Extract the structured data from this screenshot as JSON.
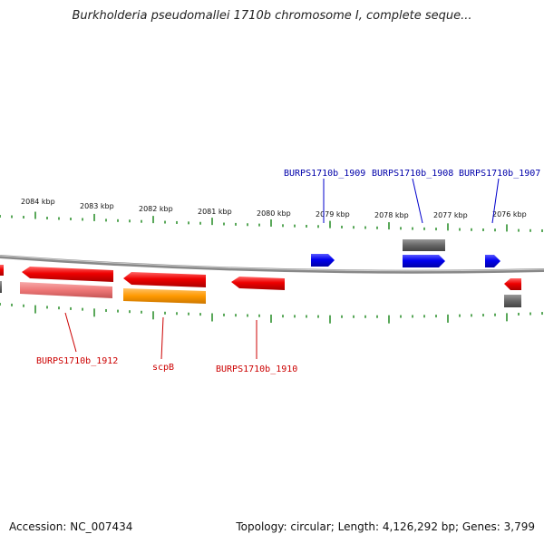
{
  "title": "Burkholderia pseudomallei 1710b chromosome I, complete seque...",
  "footer": {
    "accession": "Accession: NC_007434",
    "info": "Topology: circular; Length: 4,126,292 bp; Genes: 3,799"
  },
  "colors": {
    "forward_gene": "#0000ee",
    "reverse_gene": "#ee0000",
    "reverse_gene_light": "#ee7777",
    "rna_feature": "#ff9900",
    "other_feature": "#666666",
    "tick": "#228B22",
    "backbone": "#777777",
    "forward_label": "#0000aa",
    "reverse_label": "#cc0000"
  },
  "kbp_labels": [
    "2084 kbp",
    "2083 kbp",
    "2082 kbp",
    "2081 kbp",
    "2080 kbp",
    "2079 kbp",
    "2078 kbp",
    "2077 kbp",
    "2076 kbp"
  ],
  "gene_labels": {
    "forward": [
      "BURPS1710b_1909",
      "BURPS1710b_1908",
      "BURPS1710b_1907"
    ],
    "reverse": [
      "BURPS1710b_1912",
      "scpB",
      "BURPS1710b_1910"
    ]
  }
}
